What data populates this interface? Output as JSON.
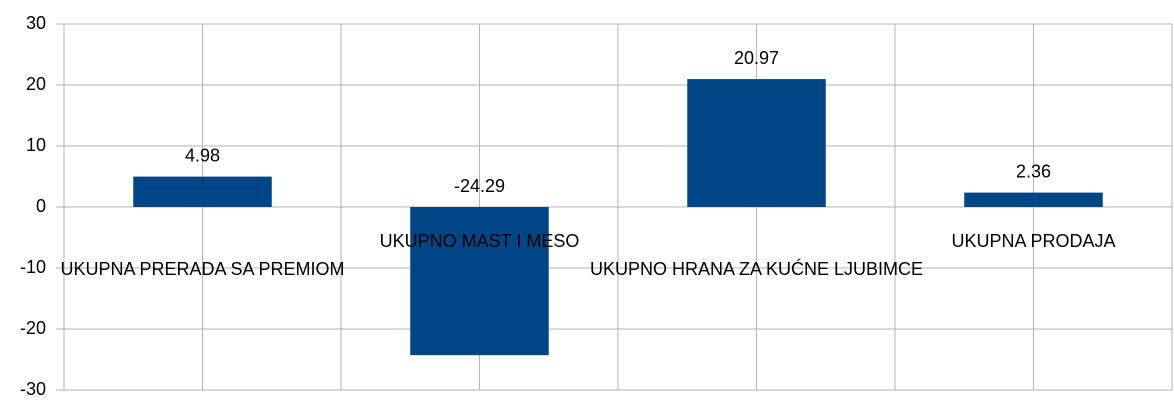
{
  "chart_data": {
    "type": "bar",
    "categories": [
      "UKUPNA PRERADA SA PREMIOM",
      "UKUPNO MAST I MESO",
      "UKUPNO HRANA ZA KUĆNE LJUBIMCE",
      "UKUPNA PRODAJA"
    ],
    "values": [
      4.98,
      -24.29,
      20.97,
      2.36
    ],
    "color": "#004586",
    "ylim": [
      -30,
      30
    ],
    "yticks": [
      -30,
      -20,
      -10,
      0,
      10,
      20,
      30
    ],
    "grid": true
  }
}
